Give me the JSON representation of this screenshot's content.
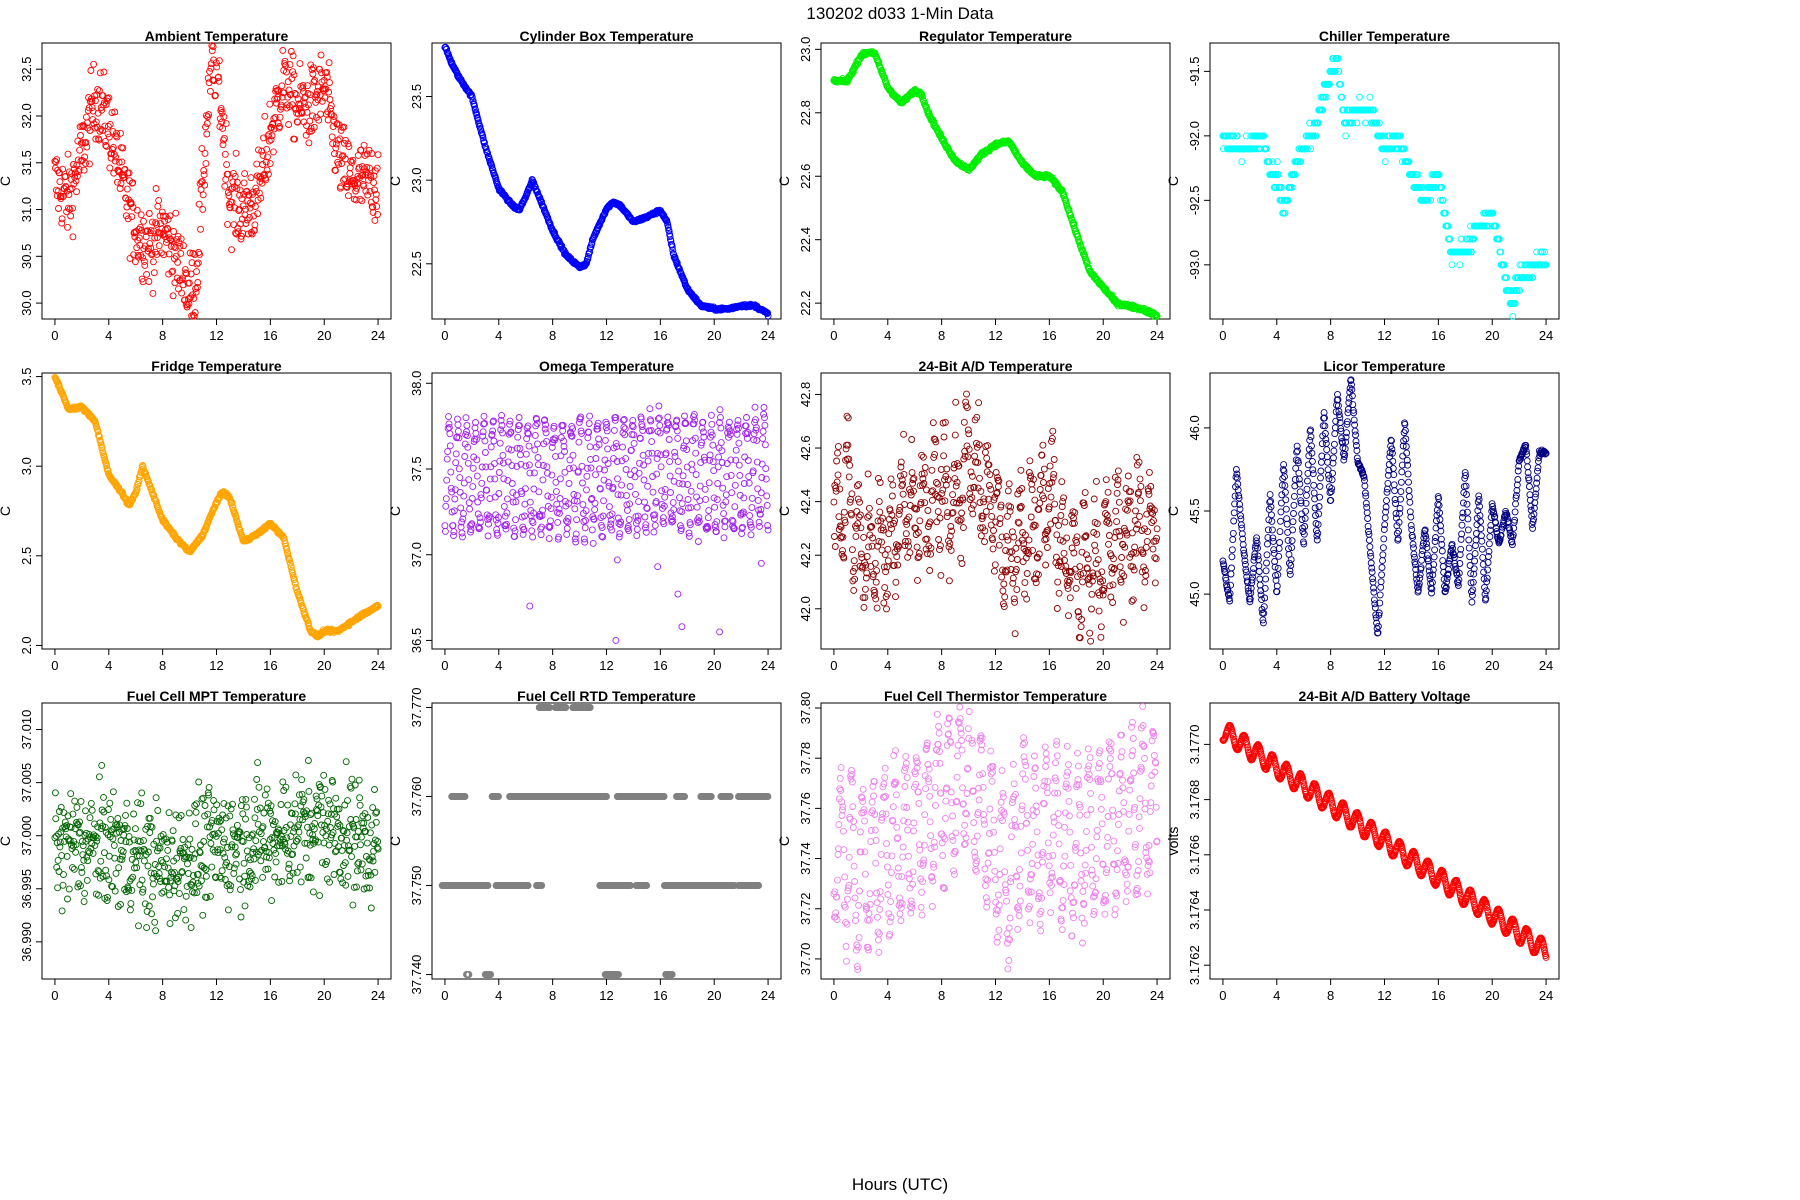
{
  "figure": {
    "title": "130202   d033   1-Min Data",
    "xlabel": "Hours (UTC)"
  },
  "chart_data": [
    {
      "type": "scatter",
      "title": "Ambient Temperature",
      "ylabel": "C",
      "color": "#ff0000",
      "xlim": [
        0,
        24
      ],
      "xticks": [
        0,
        4,
        8,
        12,
        16,
        20,
        24
      ],
      "ylim": [
        29.83,
        32.78
      ],
      "yticks": [
        30.0,
        30.5,
        31.0,
        31.5,
        32.0,
        32.5
      ],
      "ytick_labels": [
        "30.0",
        "30.5",
        "31.0",
        "31.5",
        "32.0",
        "32.5"
      ],
      "series": [
        {
          "name": "Ambient Temperature",
          "x": [
            0,
            1,
            2,
            3,
            4,
            5,
            6,
            7,
            8,
            9,
            10,
            10.5,
            11,
            11.5,
            12,
            13,
            14,
            15,
            16,
            17,
            18,
            19,
            20,
            21,
            22,
            23,
            24
          ],
          "y": [
            31.3,
            31.1,
            31.6,
            32.2,
            31.9,
            31.3,
            30.8,
            30.6,
            30.8,
            30.5,
            30.1,
            30.3,
            31.3,
            32.4,
            32.6,
            31.1,
            31.0,
            31.1,
            31.8,
            32.4,
            32.1,
            32.1,
            32.3,
            31.6,
            31.3,
            31.3,
            31.3
          ],
          "spread": 0.3
        }
      ]
    },
    {
      "type": "scatter",
      "title": "Cylinder Box Temperature",
      "ylabel": "C",
      "color": "#0000ff",
      "xlim": [
        0,
        24
      ],
      "xticks": [
        0,
        4,
        8,
        12,
        16,
        20,
        24
      ],
      "ylim": [
        22.17,
        23.82
      ],
      "yticks": [
        22.5,
        23.0,
        23.5
      ],
      "ytick_labels": [
        "22.5",
        "23.0",
        "23.5"
      ],
      "series": [
        {
          "name": "Cylinder Box Temperature",
          "x": [
            0,
            0.5,
            1,
            2,
            3,
            4,
            5,
            5.5,
            6,
            6.5,
            7,
            8,
            9,
            10,
            10.5,
            11,
            12,
            12.5,
            13,
            14,
            15,
            16,
            16.5,
            17,
            18,
            19,
            20,
            21,
            22,
            23,
            24
          ],
          "y": [
            23.8,
            23.7,
            23.62,
            23.5,
            23.2,
            22.95,
            22.85,
            22.82,
            22.9,
            23.0,
            22.9,
            22.7,
            22.55,
            22.48,
            22.5,
            22.65,
            22.83,
            22.87,
            22.85,
            22.75,
            22.78,
            22.82,
            22.75,
            22.55,
            22.35,
            22.25,
            22.23,
            22.23,
            22.25,
            22.25,
            22.2
          ],
          "spread": 0.006
        }
      ]
    },
    {
      "type": "scatter",
      "title": "Regulator Temperature",
      "ylabel": "C",
      "color": "#00ee00",
      "xlim": [
        0,
        24
      ],
      "xticks": [
        0,
        4,
        8,
        12,
        16,
        20,
        24
      ],
      "ylim": [
        22.15,
        23.02
      ],
      "yticks": [
        22.2,
        22.4,
        22.6,
        22.8,
        23.0
      ],
      "ytick_labels": [
        "22.2",
        "22.4",
        "22.6",
        "22.8",
        "23.0"
      ],
      "series": [
        {
          "name": "Regulator Temperature",
          "x": [
            0,
            1,
            2,
            2.5,
            3,
            4,
            5,
            6,
            6.5,
            7,
            8,
            9,
            10,
            11,
            12,
            13,
            14,
            15,
            16,
            17,
            18,
            19,
            20,
            21,
            22,
            23,
            24
          ],
          "y": [
            22.9,
            22.9,
            22.98,
            22.99,
            22.99,
            22.88,
            22.83,
            22.87,
            22.86,
            22.8,
            22.72,
            22.65,
            22.62,
            22.67,
            22.7,
            22.71,
            22.64,
            22.6,
            22.6,
            22.55,
            22.42,
            22.3,
            22.25,
            22.2,
            22.19,
            22.18,
            22.16
          ],
          "spread": 0.004
        }
      ]
    },
    {
      "type": "scatter",
      "title": "Chiller Temperature",
      "ylabel": "C",
      "color": "#00ffff",
      "xlim": [
        0,
        24
      ],
      "xticks": [
        0,
        4,
        8,
        12,
        16,
        20,
        24
      ],
      "ylim": [
        -93.42,
        -91.28
      ],
      "yticks": [
        -93.0,
        -92.5,
        -92.0,
        -91.5
      ],
      "ytick_labels": [
        "-93.0",
        "-92.5",
        "-92.0",
        "-91.5"
      ],
      "series": [
        {
          "name": "Chiller Temperature",
          "x": [
            0,
            1,
            2,
            3,
            3.5,
            4,
            4.5,
            5,
            5.5,
            6,
            7,
            7.5,
            8,
            8.5,
            9,
            10,
            11,
            12,
            13,
            14,
            15,
            16,
            17,
            18,
            19,
            20,
            21,
            21.5,
            22,
            23,
            24
          ],
          "y": [
            -92.0,
            -92.1,
            -92.1,
            -92.0,
            -92.3,
            -92.3,
            -92.55,
            -92.4,
            -92.2,
            -92.1,
            -91.9,
            -91.7,
            -91.5,
            -91.4,
            -91.9,
            -91.8,
            -91.8,
            -92.1,
            -92.0,
            -92.3,
            -92.5,
            -92.3,
            -92.9,
            -92.9,
            -92.7,
            -92.6,
            -93.1,
            -93.3,
            -93.1,
            -93.0,
            -92.95
          ],
          "spread": 0.05,
          "step": 0.1
        }
      ]
    },
    {
      "type": "scatter",
      "title": "Fridge Temperature",
      "ylabel": "C",
      "color": "#ffa500",
      "xlim": [
        0,
        24
      ],
      "xticks": [
        0,
        4,
        8,
        12,
        16,
        20,
        24
      ],
      "ylim": [
        1.98,
        3.52
      ],
      "yticks": [
        2.0,
        2.5,
        3.0,
        3.5
      ],
      "ytick_labels": [
        "2.0",
        "2.5",
        "3.0",
        "3.5"
      ],
      "series": [
        {
          "name": "Fridge Temperature",
          "x": [
            0,
            1,
            2,
            3,
            4,
            5,
            5.5,
            6,
            6.5,
            7,
            8,
            9,
            10,
            11,
            12,
            12.5,
            13,
            14,
            15,
            16,
            17,
            18,
            19,
            19.5,
            20,
            21,
            22,
            23,
            24
          ],
          "y": [
            3.5,
            3.32,
            3.33,
            3.25,
            2.95,
            2.85,
            2.78,
            2.85,
            3.0,
            2.9,
            2.7,
            2.6,
            2.52,
            2.62,
            2.8,
            2.86,
            2.82,
            2.58,
            2.62,
            2.68,
            2.6,
            2.3,
            2.08,
            2.05,
            2.08,
            2.08,
            2.13,
            2.18,
            2.22
          ],
          "spread": 0.006
        }
      ]
    },
    {
      "type": "scatter",
      "title": "Omega Temperature",
      "ylabel": "C",
      "color": "#a020f0",
      "xlim": [
        0,
        24
      ],
      "xticks": [
        0,
        4,
        8,
        12,
        16,
        20,
        24
      ],
      "ylim": [
        36.45,
        38.06
      ],
      "yticks": [
        36.5,
        37.0,
        37.5,
        38.0
      ],
      "ytick_labels": [
        "36.5",
        "37.0",
        "37.5",
        "38.0"
      ],
      "series": [
        {
          "name": "Omega Temperature",
          "x": [
            0,
            4,
            8,
            12,
            16,
            20,
            24
          ],
          "y": [
            37.45,
            37.45,
            37.45,
            37.45,
            37.5,
            37.45,
            37.5
          ],
          "spread": 0.05,
          "wave": {
            "amp": 0.32,
            "period": 0.65
          }
        }
      ],
      "outliers": {
        "x": [
          6.3,
          12.8,
          15.8,
          17.3,
          17.6,
          20.4,
          23.5,
          12.7
        ],
        "y": [
          36.7,
          36.97,
          36.93,
          36.77,
          36.58,
          36.55,
          36.95,
          36.5
        ]
      }
    },
    {
      "type": "scatter",
      "title": "24-Bit A/D Temperature",
      "ylabel": "C",
      "color": "#8b0000",
      "xlim": [
        0,
        24
      ],
      "xticks": [
        0,
        4,
        8,
        12,
        16,
        20,
        24
      ],
      "ylim": [
        41.85,
        42.88
      ],
      "yticks": [
        42.0,
        42.2,
        42.4,
        42.6,
        42.8
      ],
      "ytick_labels": [
        "42.0",
        "42.2",
        "42.4",
        "42.6",
        "42.8"
      ],
      "series": [
        {
          "name": "24-Bit A/D Temperature",
          "x": [
            0,
            1,
            2,
            3,
            4,
            5,
            6,
            7,
            8,
            9,
            10,
            11,
            12,
            13,
            14,
            15,
            16,
            17,
            18,
            19,
            20,
            21,
            22,
            23,
            24
          ],
          "y": [
            42.35,
            42.45,
            42.2,
            42.25,
            42.2,
            42.35,
            42.35,
            42.35,
            42.45,
            42.4,
            42.55,
            42.45,
            42.35,
            42.2,
            42.3,
            42.3,
            42.45,
            42.2,
            42.15,
            42.15,
            42.2,
            42.25,
            42.3,
            42.3,
            42.35
          ],
          "spread": 0.12,
          "wave": {
            "amp": 0.15,
            "period": 0.8
          }
        }
      ]
    },
    {
      "type": "scatter",
      "title": "Licor Temperature",
      "ylabel": "C",
      "color": "#000080",
      "xlim": [
        0,
        24
      ],
      "xticks": [
        0,
        4,
        8,
        12,
        16,
        20,
        24
      ],
      "ylim": [
        44.67,
        46.33
      ],
      "yticks": [
        45.0,
        45.5,
        46.0
      ],
      "ytick_labels": [
        "45.0",
        "45.5",
        "46.0"
      ],
      "series": [
        {
          "name": "Licor Temperature",
          "x": [
            0,
            0.5,
            1,
            1.5,
            2,
            2.5,
            3,
            3.5,
            4,
            4.5,
            5,
            5.5,
            6,
            6.5,
            7,
            7.5,
            8,
            8.5,
            9,
            9.5,
            10,
            10.5,
            11,
            11.5,
            12,
            12.5,
            13,
            13.5,
            14,
            14.5,
            15,
            15.5,
            16,
            16.5,
            17,
            17.5,
            18,
            18.5,
            19,
            19.5,
            20,
            20.5,
            21,
            21.5,
            22,
            22.5,
            23,
            23.5,
            24
          ],
          "y": [
            45.2,
            44.95,
            45.75,
            45.3,
            44.95,
            45.35,
            44.82,
            45.6,
            45.0,
            45.8,
            45.1,
            45.9,
            45.3,
            46.0,
            45.3,
            46.1,
            45.55,
            46.2,
            45.8,
            46.3,
            45.8,
            45.7,
            45.2,
            44.75,
            45.4,
            45.95,
            45.3,
            46.05,
            45.4,
            45.0,
            45.4,
            45.0,
            45.6,
            45.0,
            45.3,
            45.05,
            45.75,
            44.95,
            45.6,
            44.95,
            45.55,
            45.3,
            45.5,
            45.3,
            45.8,
            45.9,
            45.4,
            45.85,
            45.85
          ],
          "spread": 0.01
        }
      ]
    },
    {
      "type": "scatter",
      "title": "Fuel Cell MPT Temperature",
      "ylabel": "C",
      "color": "#006400",
      "xlim": [
        0,
        24
      ],
      "xticks": [
        0,
        4,
        8,
        12,
        16,
        20,
        24
      ],
      "ylim": [
        36.9865,
        37.0125
      ],
      "yticks": [
        36.99,
        36.995,
        37.0,
        37.005,
        37.01
      ],
      "ytick_labels": [
        "36.990",
        "36.995",
        "37.000",
        "37.005",
        "37.010"
      ],
      "series": [
        {
          "name": "Fuel Cell MPT Temperature",
          "x": [
            0,
            4,
            8,
            12,
            16,
            20,
            24
          ],
          "y": [
            36.999,
            36.999,
            36.997,
            36.999,
            37.0,
            37.001,
            36.999
          ],
          "spread": 0.004
        }
      ]
    },
    {
      "type": "scatter",
      "title": "Fuel Cell RTD Temperature",
      "ylabel": "C",
      "color": "#808080",
      "xlim": [
        0,
        24
      ],
      "xticks": [
        0,
        4,
        8,
        12,
        16,
        20,
        24
      ],
      "ylim": [
        37.7395,
        37.7705
      ],
      "yticks": [
        37.74,
        37.75,
        37.76,
        37.77
      ],
      "ytick_labels": [
        "37.740",
        "37.750",
        "37.760",
        "37.770"
      ],
      "levels": [
        {
          "y": 37.76,
          "segments": [
            [
              0.5,
              1.5
            ],
            [
              3.5,
              4.0
            ],
            [
              4.8,
              12.0
            ],
            [
              12.8,
              16.3
            ],
            [
              17.2,
              17.8
            ],
            [
              19.0,
              19.8
            ],
            [
              20.5,
              21.2
            ],
            [
              21.8,
              24.0
            ]
          ]
        },
        {
          "y": 37.75,
          "segments": [
            [
              -0.2,
              3.2
            ],
            [
              3.8,
              4.5
            ],
            [
              4.5,
              6.2
            ],
            [
              6.8,
              7.2
            ],
            [
              11.5,
              13.8
            ],
            [
              14.2,
              15.0
            ],
            [
              16.3,
              17.2
            ],
            [
              17.3,
              21.5
            ],
            [
              21.8,
              23.3
            ]
          ]
        },
        {
          "y": 37.77,
          "segments": [
            [
              7.0,
              7.8
            ],
            [
              8.2,
              9.0
            ],
            [
              9.5,
              10.8
            ]
          ]
        },
        {
          "y": 37.74,
          "segments": [
            [
              1.6,
              1.8
            ],
            [
              3.0,
              3.4
            ],
            [
              11.9,
              12.9
            ],
            [
              16.4,
              16.9
            ]
          ]
        }
      ]
    },
    {
      "type": "scatter",
      "title": "Fuel Cell Thermistor Temperature",
      "ylabel": "C",
      "color": "#ee82ee",
      "xlim": [
        0,
        24
      ],
      "xticks": [
        0,
        4,
        8,
        12,
        16,
        20,
        24
      ],
      "ylim": [
        37.692,
        37.802
      ],
      "yticks": [
        37.7,
        37.72,
        37.74,
        37.76,
        37.78,
        37.8
      ],
      "ytick_labels": [
        "37.70",
        "37.72",
        "37.74",
        "37.76",
        "37.78",
        "37.80"
      ],
      "series": [
        {
          "name": "Fuel Cell Thermistor Temperature",
          "x": [
            0,
            2,
            4,
            6,
            8,
            10,
            11,
            12,
            13,
            14,
            15,
            16,
            17,
            18,
            20,
            22,
            24
          ],
          "y": [
            37.745,
            37.735,
            37.745,
            37.75,
            37.765,
            37.775,
            37.76,
            37.74,
            37.735,
            37.755,
            37.745,
            37.755,
            37.745,
            37.745,
            37.75,
            37.755,
            37.765
          ],
          "spread": 0.008,
          "wave": {
            "amp": 0.03,
            "period": 0.8
          }
        }
      ]
    },
    {
      "type": "scatter",
      "title": "24-Bit A/D Battery Voltage",
      "ylabel": "volts",
      "color": "#ff0000",
      "xlim": [
        0,
        24
      ],
      "xticks": [
        0,
        4,
        8,
        12,
        16,
        20,
        24
      ],
      "ylim": [
        3.17615,
        3.17715
      ],
      "yticks": [
        3.1762,
        3.1764,
        3.1766,
        3.1768,
        3.177
      ],
      "ytick_labels": [
        "3.1762",
        "3.1764",
        "3.1766",
        "3.1768",
        "3.1770"
      ],
      "series": [
        {
          "name": "24-Bit A/D Battery Voltage",
          "x": [
            0,
            24
          ],
          "y": [
            3.17705,
            3.17625
          ],
          "spread": 1.5e-06,
          "wave": {
            "amp": 3.5e-05,
            "period": 1.05
          }
        }
      ]
    }
  ]
}
